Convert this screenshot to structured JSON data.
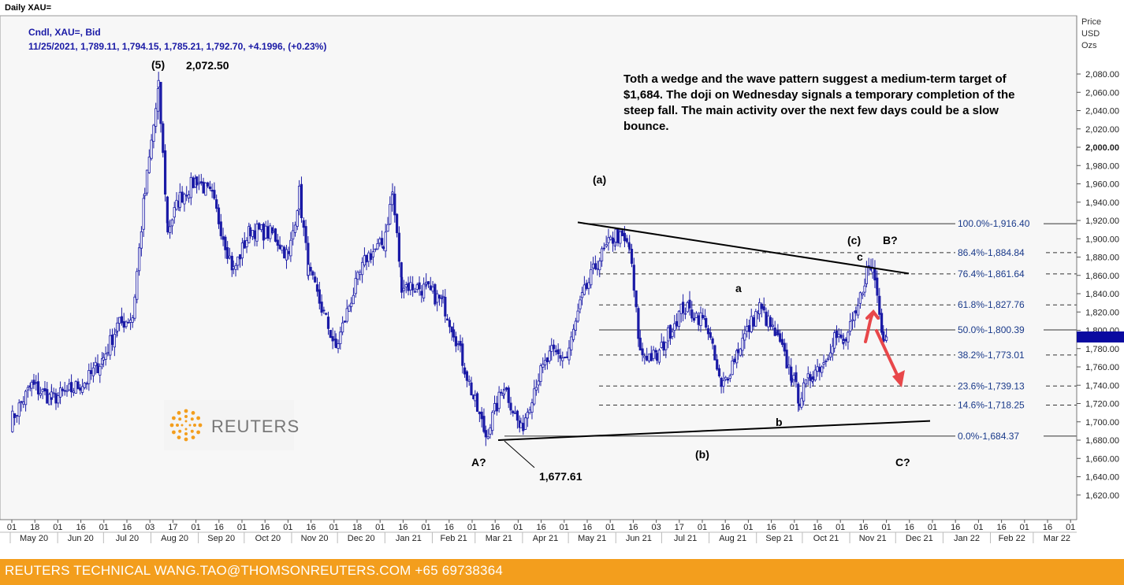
{
  "window_title": "Daily XAU=",
  "header": {
    "line1": "Cndl, XAU=, Bid",
    "line2": "11/25/2021, 1,789.11, 1,794.15, 1,785.21, 1,792.70, +4.1996, (+0.23%)"
  },
  "price_axis_header": [
    "Price",
    "USD",
    "Ozs"
  ],
  "annotation_text": "Toth a wedge and the wave pattern suggest a medium-term target of $1,684. The doji on Wednesday signals a temporary completion of the steep fall. The main activity over the next few days could be a slow bounce.",
  "wave_labels": [
    {
      "text": "(5)"
    },
    {
      "text": "2,072.50"
    },
    {
      "text": "(a)"
    },
    {
      "text": "(c)"
    },
    {
      "text": "B?"
    },
    {
      "text": "c"
    },
    {
      "text": "a"
    },
    {
      "text": "b"
    },
    {
      "text": "(b)"
    },
    {
      "text": "A?"
    },
    {
      "text": "1,677.61"
    },
    {
      "text": "C?"
    }
  ],
  "logo_text": "REUTERS",
  "footer_text": "REUTERS TECHNICAL  WANG.TAO@THOMSONREUTERS.COM  +65 69738364",
  "colors": {
    "candle": "#1a1aa6",
    "footer": "#f39e1d",
    "arrow": "#e8474a",
    "current_price": "#0a0aa0"
  },
  "chart_data": {
    "type": "candlestick",
    "instrument": "XAU=",
    "ylim": [
      1600,
      2100
    ],
    "yticks": [
      1620,
      1640,
      1660,
      1680,
      1700,
      1720,
      1740,
      1760,
      1780,
      1800,
      1820,
      1840,
      1860,
      1880,
      1900,
      1920,
      1940,
      1960,
      1980,
      2000,
      2020,
      2040,
      2060,
      2080
    ],
    "ytick_labels": [
      "1,620.00",
      "1,640.00",
      "1,660.00",
      "1,680.00",
      "1,700.00",
      "1,720.00",
      "1,740.00",
      "1,760.00",
      "1,780.00",
      "1,800.00",
      "1,820.00",
      "1,840.00",
      "1,860.00",
      "1,880.00",
      "1,900.00",
      "1,920.00",
      "1,940.00",
      "1,960.00",
      "1,980.00",
      "2,000.00",
      "2,020.00",
      "2,040.00",
      "2,060.00",
      "2,080.00"
    ],
    "day_ticks": [
      "01",
      "18",
      "01",
      "16",
      "01",
      "16",
      "03",
      "17",
      "01",
      "16",
      "01",
      "16",
      "01",
      "16",
      "01",
      "18",
      "01",
      "16",
      "01",
      "16",
      "01",
      "16",
      "01",
      "16",
      "01",
      "16",
      "01",
      "16",
      "03",
      "17",
      "01",
      "16",
      "01",
      "16",
      "01",
      "16",
      "01",
      "16",
      "01",
      "16",
      "01",
      "16",
      "01",
      "16",
      "01",
      "16",
      "01",
      "18",
      "01",
      "18",
      "01",
      "18",
      "01",
      "18",
      "01",
      "18"
    ],
    "months": [
      "May 20",
      "Jun 20",
      "Jul 20",
      "Aug 20",
      "Sep 20",
      "Oct 20",
      "Nov 20",
      "Dec 20",
      "Jan 21",
      "Feb 21",
      "Mar 21",
      "Apr 21",
      "May 21",
      "Jun 21",
      "Jul 21",
      "Aug 21",
      "Sep 21",
      "Oct 21",
      "Nov 21",
      "Dec 21",
      "Jan 22",
      "Feb 22",
      "Mar 22"
    ],
    "fib_levels": [
      {
        "label": "100.0%",
        "value": 1916.4,
        "text": "1,916.40"
      },
      {
        "label": "86.4%",
        "value": 1884.84,
        "text": "1,884.84"
      },
      {
        "label": "76.4%",
        "value": 1861.64,
        "text": "1,861.64"
      },
      {
        "label": "61.8%",
        "value": 1827.76,
        "text": "1,827.76"
      },
      {
        "label": "50.0%",
        "value": 1800.39,
        "text": "1,800.39"
      },
      {
        "label": "38.2%",
        "value": 1773.01,
        "text": "1,773.01"
      },
      {
        "label": "23.6%",
        "value": 1739.13,
        "text": "1,739.13"
      },
      {
        "label": "14.6%",
        "value": 1718.25,
        "text": "1,718.25"
      },
      {
        "label": "0.0%",
        "value": 1684.37,
        "text": "1,684.37"
      }
    ],
    "current_price": 1792.7,
    "close_path": [
      [
        "2020-05-01",
        1700
      ],
      [
        "2020-05-15",
        1740
      ],
      [
        "2020-05-28",
        1725
      ],
      [
        "2020-06-10",
        1735
      ],
      [
        "2020-06-20",
        1745
      ],
      [
        "2020-07-01",
        1770
      ],
      [
        "2020-07-10",
        1805
      ],
      [
        "2020-07-20",
        1815
      ],
      [
        "2020-07-28",
        1950
      ],
      [
        "2020-08-06",
        2065
      ],
      [
        "2020-08-12",
        1910
      ],
      [
        "2020-08-20",
        1945
      ],
      [
        "2020-08-31",
        1965
      ],
      [
        "2020-09-10",
        1945
      ],
      [
        "2020-09-24",
        1865
      ],
      [
        "2020-10-05",
        1910
      ],
      [
        "2020-10-20",
        1905
      ],
      [
        "2020-10-30",
        1880
      ],
      [
        "2020-11-06",
        1950
      ],
      [
        "2020-11-12",
        1865
      ],
      [
        "2020-11-30",
        1780
      ],
      [
        "2020-12-10",
        1835
      ],
      [
        "2020-12-20",
        1880
      ],
      [
        "2020-12-31",
        1895
      ],
      [
        "2021-01-06",
        1950
      ],
      [
        "2021-01-12",
        1850
      ],
      [
        "2021-01-28",
        1845
      ],
      [
        "2021-02-08",
        1830
      ],
      [
        "2021-02-15",
        1800
      ],
      [
        "2021-03-01",
        1720
      ],
      [
        "2021-03-08",
        1685
      ],
      [
        "2021-03-20",
        1740
      ],
      [
        "2021-03-31",
        1690
      ],
      [
        "2021-04-10",
        1745
      ],
      [
        "2021-04-20",
        1775
      ],
      [
        "2021-04-30",
        1770
      ],
      [
        "2021-05-10",
        1835
      ],
      [
        "2021-05-20",
        1875
      ],
      [
        "2021-06-01",
        1905
      ],
      [
        "2021-06-10",
        1890
      ],
      [
        "2021-06-17",
        1775
      ],
      [
        "2021-06-28",
        1770
      ],
      [
        "2021-07-08",
        1805
      ],
      [
        "2021-07-15",
        1825
      ],
      [
        "2021-07-30",
        1810
      ],
      [
        "2021-08-09",
        1735
      ],
      [
        "2021-08-20",
        1780
      ],
      [
        "2021-09-03",
        1825
      ],
      [
        "2021-09-15",
        1790
      ],
      [
        "2021-09-24",
        1750
      ],
      [
        "2021-09-29",
        1725
      ],
      [
        "2021-10-08",
        1755
      ],
      [
        "2021-10-15",
        1765
      ],
      [
        "2021-10-22",
        1795
      ],
      [
        "2021-10-28",
        1785
      ],
      [
        "2021-11-05",
        1815
      ],
      [
        "2021-11-12",
        1865
      ],
      [
        "2021-11-16",
        1868
      ],
      [
        "2021-11-19",
        1845
      ],
      [
        "2021-11-23",
        1790
      ],
      [
        "2021-11-25",
        1792.7
      ]
    ]
  }
}
